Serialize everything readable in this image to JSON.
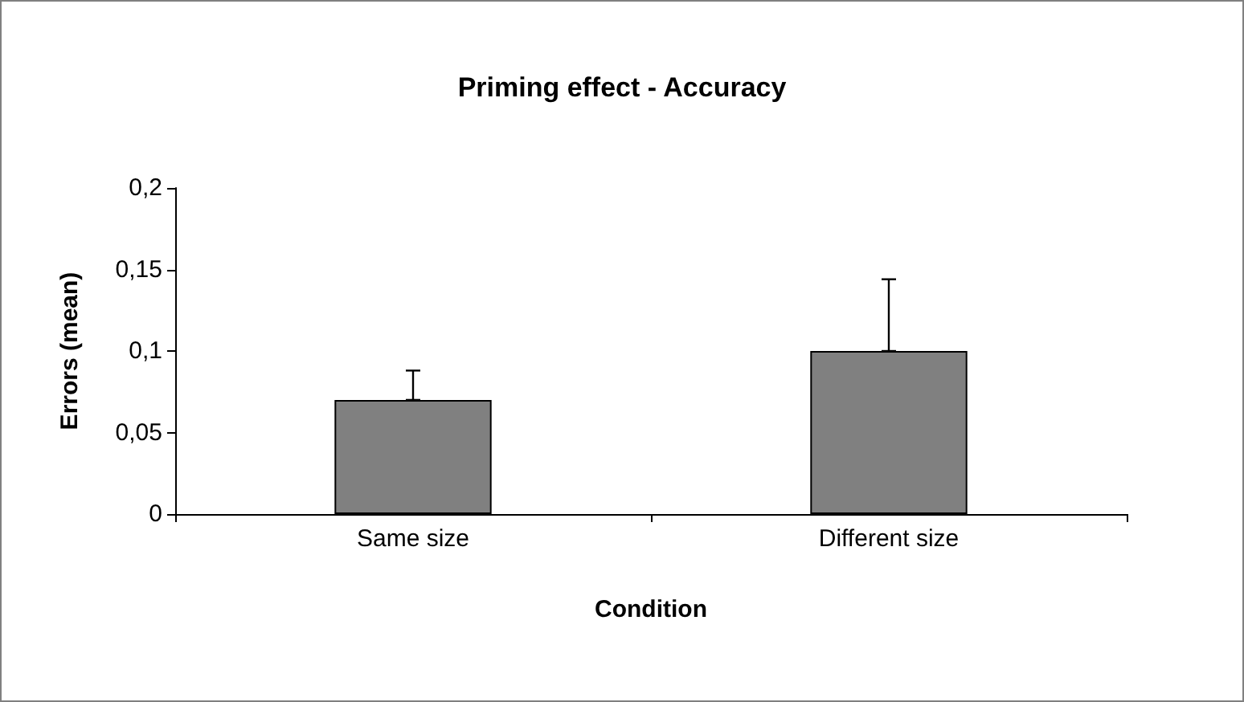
{
  "chart_data": {
    "type": "bar",
    "title": "Priming effect - Accuracy",
    "xlabel": "Condition",
    "ylabel": "Errors (mean)",
    "categories": [
      "Same size",
      "Different size"
    ],
    "values": [
      0.07,
      0.1
    ],
    "color": "#808080",
    "errors": [
      [
        0.07,
        0.088
      ],
      [
        0.1,
        0.144
      ]
    ],
    "ylim": [
      0,
      0.2
    ],
    "yticks": [
      0,
      {
        "value": 0.05,
        "label": "0,05"
      },
      {
        "value": 0.1,
        "label": "0,1"
      },
      {
        "value": 0.15,
        "label": "0,15"
      },
      {
        "value": 0.2,
        "label": "0,2"
      }
    ],
    "grid": false
  }
}
